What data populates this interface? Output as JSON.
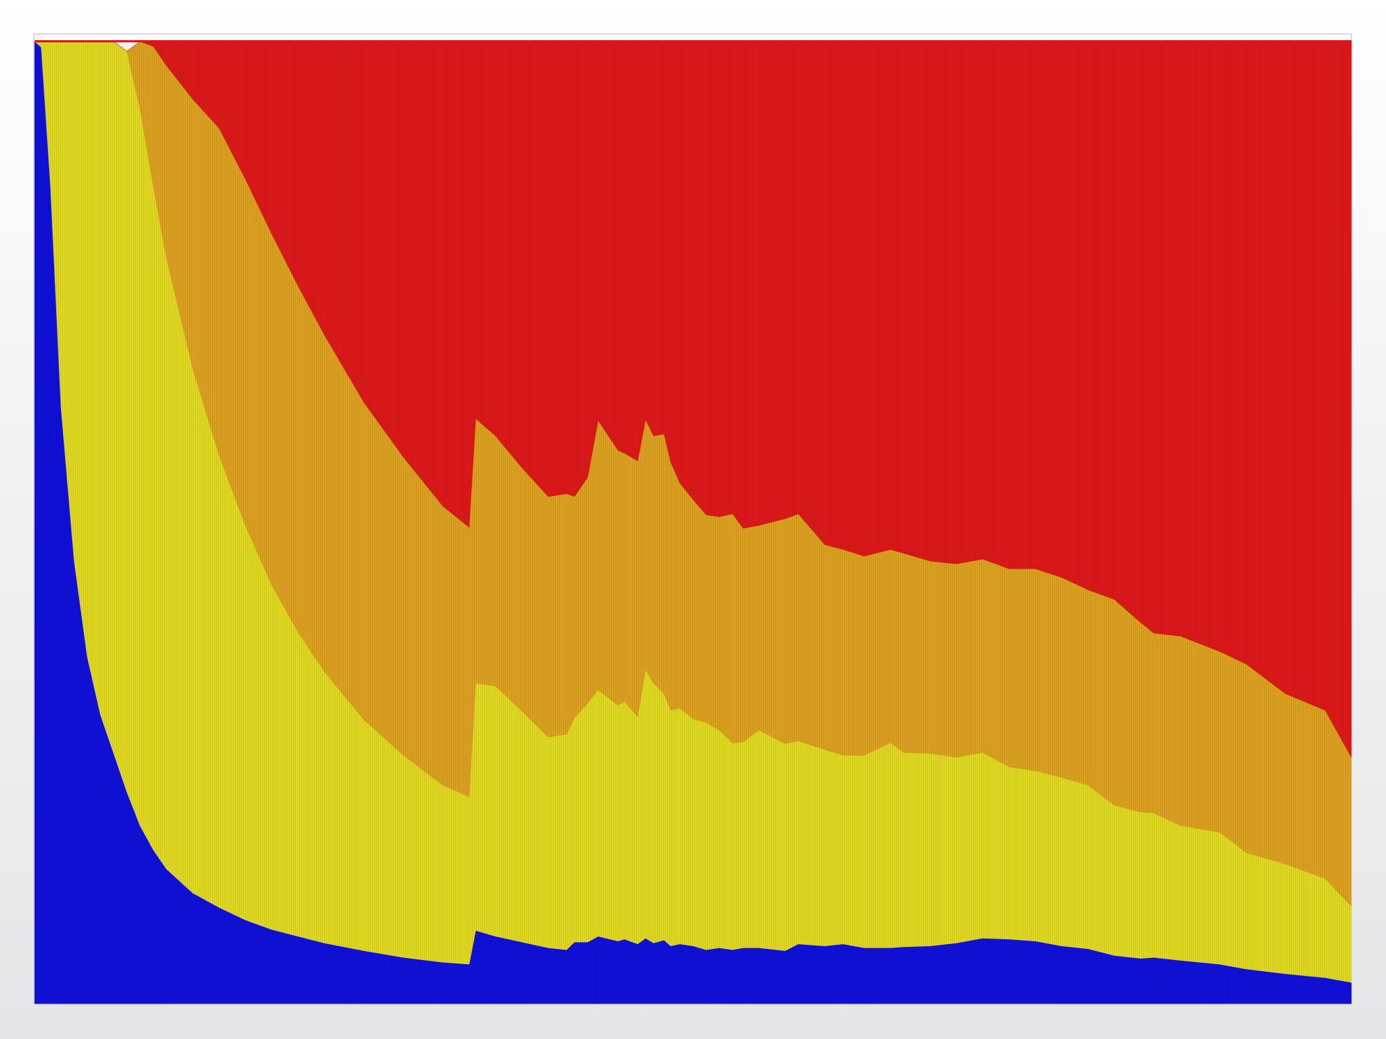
{
  "page": {
    "background_top": "#ffffff",
    "background_bottom": "#e6e6e8",
    "frame_color": "#d8d8e0"
  },
  "chart_data": {
    "type": "area",
    "stacked": true,
    "normalized": true,
    "title": "",
    "xlabel": "",
    "ylabel": "",
    "xlim": [
      0,
      1
    ],
    "ylim": [
      0,
      1
    ],
    "grid": false,
    "legend": "none",
    "x": [
      0,
      0.005,
      0.012,
      0.02,
      0.03,
      0.04,
      0.05,
      0.06,
      0.07,
      0.08,
      0.09,
      0.1,
      0.12,
      0.14,
      0.16,
      0.18,
      0.2,
      0.22,
      0.25,
      0.28,
      0.31,
      0.33,
      0.335,
      0.35,
      0.37,
      0.39,
      0.404,
      0.41,
      0.42,
      0.428,
      0.443,
      0.448,
      0.458,
      0.464,
      0.47,
      0.478,
      0.483,
      0.49,
      0.5,
      0.51,
      0.52,
      0.53,
      0.538,
      0.55,
      0.57,
      0.58,
      0.6,
      0.614,
      0.63,
      0.65,
      0.66,
      0.68,
      0.7,
      0.72,
      0.74,
      0.76,
      0.78,
      0.8,
      0.82,
      0.84,
      0.85,
      0.87,
      0.9,
      0.92,
      0.95,
      0.98,
      1.0
    ],
    "series": [
      {
        "color": "#1010d8",
        "values": [
          1.0,
          0.994,
          0.85,
          0.62,
          0.46,
          0.36,
          0.3,
          0.26,
          0.22,
          0.185,
          0.16,
          0.14,
          0.115,
          0.1,
          0.087,
          0.077,
          0.07,
          0.063,
          0.055,
          0.048,
          0.043,
          0.041,
          0.076,
          0.07,
          0.064,
          0.058,
          0.056,
          0.064,
          0.064,
          0.07,
          0.065,
          0.067,
          0.062,
          0.068,
          0.063,
          0.066,
          0.06,
          0.062,
          0.06,
          0.056,
          0.058,
          0.056,
          0.058,
          0.058,
          0.055,
          0.062,
          0.06,
          0.062,
          0.058,
          0.058,
          0.059,
          0.06,
          0.063,
          0.068,
          0.067,
          0.065,
          0.06,
          0.057,
          0.05,
          0.047,
          0.048,
          0.045,
          0.041,
          0.036,
          0.031,
          0.027,
          0.022
        ]
      },
      {
        "color": "#e0d820",
        "values": [
          0.0,
          0.006,
          0.15,
          0.38,
          0.54,
          0.64,
          0.7,
          0.74,
          0.77,
          0.745,
          0.69,
          0.635,
          0.545,
          0.47,
          0.41,
          0.358,
          0.316,
          0.282,
          0.24,
          0.21,
          0.184,
          0.174,
          0.257,
          0.26,
          0.24,
          0.219,
          0.224,
          0.233,
          0.248,
          0.256,
          0.245,
          0.247,
          0.236,
          0.279,
          0.27,
          0.256,
          0.245,
          0.245,
          0.236,
          0.236,
          0.226,
          0.215,
          0.214,
          0.226,
          0.215,
          0.211,
          0.204,
          0.196,
          0.2,
          0.213,
          0.202,
          0.2,
          0.193,
          0.193,
          0.179,
          0.177,
          0.175,
          0.17,
          0.156,
          0.152,
          0.15,
          0.14,
          0.137,
          0.121,
          0.114,
          0.103,
          0.079
        ]
      },
      {
        "color": "#dca020",
        "values": [
          0.0,
          0.0,
          0.0,
          0.0,
          0.0,
          0.0,
          0.0,
          0.0,
          0.0,
          0.07,
          0.145,
          0.2,
          0.28,
          0.34,
          0.36,
          0.365,
          0.36,
          0.35,
          0.33,
          0.31,
          0.29,
          0.28,
          0.275,
          0.26,
          0.253,
          0.25,
          0.25,
          0.23,
          0.235,
          0.28,
          0.265,
          0.258,
          0.266,
          0.26,
          0.257,
          0.27,
          0.258,
          0.234,
          0.228,
          0.216,
          0.222,
          0.238,
          0.222,
          0.213,
          0.234,
          0.236,
          0.213,
          0.214,
          0.207,
          0.201,
          0.207,
          0.2,
          0.201,
          0.201,
          0.206,
          0.21,
          0.208,
          0.203,
          0.214,
          0.197,
          0.187,
          0.197,
          0.188,
          0.196,
          0.177,
          0.175,
          0.155
        ]
      },
      {
        "color": "#dc1818",
        "values": [
          0.0,
          0.0,
          0.0,
          0.0,
          0.0,
          0.0,
          0.0,
          0.0,
          0.0,
          0.0,
          0.005,
          0.025,
          0.06,
          0.09,
          0.143,
          0.2,
          0.254,
          0.305,
          0.375,
          0.432,
          0.483,
          0.505,
          0.392,
          0.41,
          0.443,
          0.473,
          0.47,
          0.473,
          0.453,
          0.394,
          0.425,
          0.428,
          0.436,
          0.393,
          0.41,
          0.408,
          0.437,
          0.459,
          0.476,
          0.492,
          0.494,
          0.491,
          0.506,
          0.503,
          0.496,
          0.491,
          0.523,
          0.528,
          0.535,
          0.528,
          0.532,
          0.54,
          0.543,
          0.538,
          0.548,
          0.548,
          0.557,
          0.57,
          0.58,
          0.604,
          0.615,
          0.618,
          0.634,
          0.647,
          0.678,
          0.695,
          0.744
        ]
      }
    ]
  }
}
